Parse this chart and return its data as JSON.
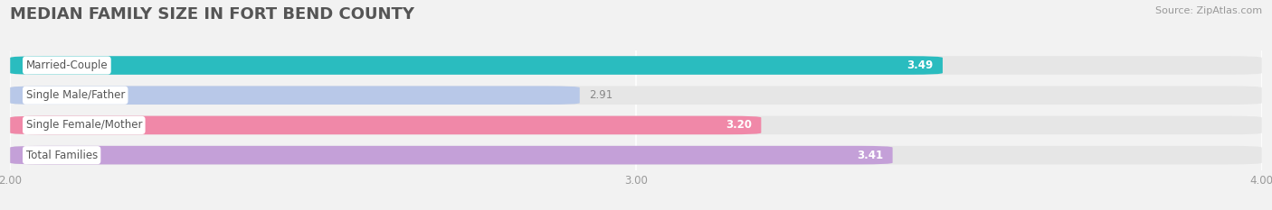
{
  "title": "MEDIAN FAMILY SIZE IN FORT BEND COUNTY",
  "source": "Source: ZipAtlas.com",
  "categories": [
    "Married-Couple",
    "Single Male/Father",
    "Single Female/Mother",
    "Total Families"
  ],
  "values": [
    3.49,
    2.91,
    3.2,
    3.41
  ],
  "bar_colors": [
    "#2abcbf",
    "#b8c8e8",
    "#f088a8",
    "#c4a0d8"
  ],
  "value_text_colors": [
    "white",
    "#888888",
    "white",
    "white"
  ],
  "xlim": [
    2.0,
    4.0
  ],
  "xticks": [
    2.0,
    3.0,
    4.0
  ],
  "xtick_labels": [
    "2.00",
    "3.00",
    "4.00"
  ],
  "bar_height": 0.62,
  "label_fontsize": 8.5,
  "value_fontsize": 8.5,
  "title_fontsize": 13,
  "source_fontsize": 8,
  "background_color": "#f2f2f2",
  "bar_background_color": "#e6e6e6",
  "label_bg_color": "white",
  "grid_color": "#ffffff"
}
